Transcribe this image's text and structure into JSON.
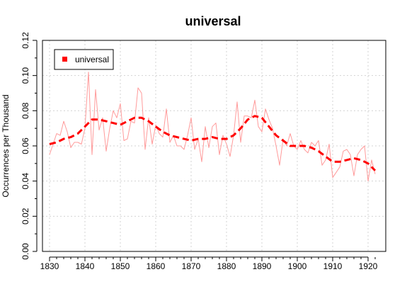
{
  "chart_data": {
    "type": "line",
    "title": "universal",
    "xlabel": "",
    "ylabel": "Occurrences per Thousand",
    "xlim": [
      1828,
      1925
    ],
    "ylim": [
      0,
      0.12
    ],
    "x_ticks": [
      1830,
      1840,
      1850,
      1860,
      1870,
      1880,
      1890,
      1900,
      1910,
      1920
    ],
    "y_ticks": [
      0.0,
      0.02,
      0.04,
      0.06,
      0.08,
      0.1,
      0.12
    ],
    "y_tick_labels": [
      "0.00",
      "0.02",
      "0.04",
      "0.06",
      "0.08",
      "0.10",
      "0.12"
    ],
    "grid": true,
    "legend": {
      "position": "top-left",
      "entries": [
        "universal"
      ]
    },
    "colors": {
      "raw": "#ff9a9a",
      "smooth": "#ff0000"
    },
    "series": [
      {
        "name": "universal",
        "role": "raw",
        "x": [
          1830,
          1831,
          1832,
          1833,
          1834,
          1835,
          1836,
          1837,
          1838,
          1839,
          1840,
          1841,
          1842,
          1843,
          1844,
          1845,
          1846,
          1847,
          1848,
          1849,
          1850,
          1851,
          1852,
          1853,
          1854,
          1855,
          1856,
          1857,
          1858,
          1859,
          1860,
          1861,
          1862,
          1863,
          1864,
          1865,
          1866,
          1867,
          1868,
          1869,
          1870,
          1871,
          1872,
          1873,
          1874,
          1875,
          1876,
          1877,
          1878,
          1879,
          1880,
          1881,
          1882,
          1883,
          1884,
          1885,
          1886,
          1887,
          1888,
          1889,
          1890,
          1891,
          1892,
          1893,
          1894,
          1895,
          1896,
          1897,
          1898,
          1899,
          1900,
          1901,
          1902,
          1903,
          1904,
          1905,
          1906,
          1907,
          1908,
          1909,
          1910,
          1911,
          1912,
          1913,
          1914,
          1915,
          1916,
          1917,
          1918,
          1919,
          1920,
          1921,
          1922
        ],
        "y": [
          0.055,
          0.061,
          0.067,
          0.066,
          0.074,
          0.068,
          0.059,
          0.062,
          0.062,
          0.061,
          0.07,
          0.102,
          0.055,
          0.092,
          0.069,
          0.076,
          0.057,
          0.07,
          0.08,
          0.076,
          0.084,
          0.063,
          0.064,
          0.074,
          0.073,
          0.093,
          0.09,
          0.058,
          0.076,
          0.061,
          0.072,
          0.067,
          0.065,
          0.081,
          0.062,
          0.066,
          0.06,
          0.06,
          0.058,
          0.066,
          0.076,
          0.058,
          0.064,
          0.051,
          0.071,
          0.059,
          0.071,
          0.073,
          0.055,
          0.066,
          0.061,
          0.054,
          0.066,
          0.085,
          0.062,
          0.077,
          0.077,
          0.076,
          0.086,
          0.071,
          0.068,
          0.081,
          0.075,
          0.07,
          0.06,
          0.049,
          0.064,
          0.06,
          0.067,
          0.06,
          0.058,
          0.063,
          0.058,
          0.056,
          0.062,
          0.06,
          0.063,
          0.049,
          0.052,
          0.061,
          0.042,
          0.045,
          0.048,
          0.057,
          0.058,
          0.055,
          0.043,
          0.055,
          0.058,
          0.06,
          0.04,
          0.052,
          0.044
        ]
      },
      {
        "name": "",
        "role": "smooth",
        "x": [
          1830,
          1832,
          1834,
          1836,
          1838,
          1840,
          1842,
          1844,
          1846,
          1848,
          1850,
          1852,
          1854,
          1856,
          1858,
          1860,
          1862,
          1864,
          1866,
          1868,
          1870,
          1872,
          1874,
          1876,
          1878,
          1880,
          1882,
          1884,
          1886,
          1888,
          1890,
          1892,
          1894,
          1896,
          1898,
          1900,
          1902,
          1904,
          1906,
          1908,
          1910,
          1912,
          1914,
          1916,
          1918,
          1920,
          1922
        ],
        "y": [
          0.061,
          0.062,
          0.064,
          0.065,
          0.067,
          0.071,
          0.075,
          0.075,
          0.074,
          0.073,
          0.072,
          0.074,
          0.076,
          0.076,
          0.074,
          0.071,
          0.068,
          0.066,
          0.065,
          0.064,
          0.063,
          0.064,
          0.064,
          0.065,
          0.064,
          0.064,
          0.066,
          0.07,
          0.075,
          0.077,
          0.076,
          0.071,
          0.066,
          0.063,
          0.06,
          0.06,
          0.06,
          0.059,
          0.057,
          0.054,
          0.051,
          0.051,
          0.052,
          0.053,
          0.052,
          0.05,
          0.046
        ]
      }
    ]
  }
}
